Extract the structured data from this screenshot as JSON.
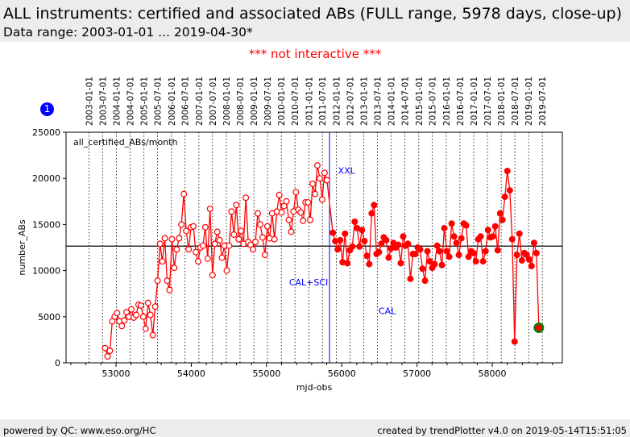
{
  "header": {
    "title": "ALL instruments: certified and associated ABs (FULL range, 5978 days, close-up)",
    "subtitle": "Data range: 2003-01-01 ... 2019-04-30*"
  },
  "notice": "*** not interactive ***",
  "badge": "1",
  "footer": {
    "left": "powered by QC: www.eso.org/HC",
    "right": "created by trendPlotter v4.0 on 2019-05-14T15:51:05"
  },
  "chart_data": {
    "type": "line",
    "title": "",
    "legend_label": "all_certified_ABs/month",
    "xlabel": "mjd-obs",
    "ylabel": "number_ABs",
    "xlim": [
      52336,
      58931
    ],
    "ylim": [
      0,
      25000
    ],
    "xticks": [
      53000,
      54000,
      55000,
      56000,
      57000,
      58000
    ],
    "yticks": [
      0,
      5000,
      10000,
      15000,
      20000,
      25000
    ],
    "date_lines": [
      "2003-01-01",
      "2003-07-01",
      "2004-01-01",
      "2004-07-01",
      "2005-01-01",
      "2005-07-01",
      "2006-01-01",
      "2006-07-01",
      "2007-01-01",
      "2007-07-01",
      "2008-01-01",
      "2008-07-01",
      "2009-01-01",
      "2009-07-01",
      "2010-01-01",
      "2010-07-01",
      "2011-01-01",
      "2011-07-01",
      "2012-01-01",
      "2012-07-01",
      "2013-01-01",
      "2013-07-01",
      "2014-01-01",
      "2014-07-01",
      "2015-01-01",
      "2015-07-01",
      "2016-01-01",
      "2016-07-01",
      "2017-01-01",
      "2017-07-01",
      "2018-01-01",
      "2018-07-01",
      "2019-01-01",
      "2019-07-01"
    ],
    "reference_line_y": 12650,
    "marker_line_x": 55837,
    "annotations": [
      {
        "text": "XXL",
        "x": 55950,
        "y": 20500
      },
      {
        "text": "CAL+SCI",
        "x": 55300,
        "y": 8400
      },
      {
        "text": "CAL",
        "x": 56490,
        "y": 5300
      }
    ],
    "colors": {
      "series": "#ff0000",
      "annotation": "#0000ff",
      "last_point": "#008000",
      "reference": "#000000"
    },
    "series": [
      {
        "marker": "hollow",
        "x": [
          52855,
          52887,
          52918,
          52950,
          52982,
          53014,
          53045,
          53077,
          53109,
          53140,
          53172,
          53204,
          53235,
          53267,
          53299,
          53331,
          53362,
          53394,
          53426,
          53457,
          53489,
          53521,
          53552,
          53584,
          53616,
          53648,
          53679,
          53711,
          53743,
          53774,
          53806,
          53838,
          53869,
          53901,
          53933,
          53965,
          53996,
          54028,
          54060,
          54091,
          54123,
          54155,
          54186,
          54218,
          54250,
          54282,
          54313,
          54345,
          54377,
          54408,
          54440,
          54472,
          54503,
          54535,
          54567,
          54599,
          54630,
          54662,
          54694,
          54725,
          54757,
          54789,
          54820,
          54852,
          54884,
          54916,
          54947,
          54979,
          55011,
          55042,
          55074,
          55106,
          55137,
          55169,
          55201,
          55233,
          55264,
          55296,
          55328,
          55359,
          55391,
          55423,
          55454,
          55486,
          55518,
          55550,
          55581,
          55613,
          55645,
          55676,
          55708,
          55740,
          55771,
          55803
        ],
        "y": [
          1600,
          700,
          1300,
          4500,
          5000,
          5400,
          4500,
          4000,
          4600,
          5500,
          5000,
          5800,
          4900,
          5200,
          6300,
          6200,
          5000,
          3700,
          6500,
          5200,
          3000,
          6100,
          8900,
          12900,
          11000,
          13500,
          8900,
          7900,
          13400,
          10300,
          12300,
          13500,
          15000,
          18300,
          14300,
          12300,
          14700,
          14800,
          12000,
          11000,
          12500,
          12700,
          14700,
          11300,
          16700,
          9500,
          12900,
          14200,
          13300,
          11400,
          12700,
          10000,
          12700,
          16400,
          13900,
          17100,
          13400,
          14300,
          12900,
          17900,
          13100,
          12800,
          12300,
          13100,
          16200,
          15000,
          13600,
          11700,
          14800,
          13500,
          16200,
          13400,
          16400,
          18200,
          16300,
          17000,
          17500,
          15500,
          14200,
          16400,
          18500,
          16600,
          16300,
          15400,
          17400,
          17400,
          15500,
          19400,
          18300,
          21400,
          20000,
          17700,
          20600,
          19800
        ]
      },
      {
        "marker": "filled",
        "x": [
          55882,
          55914,
          55946,
          55979,
          56011,
          56043,
          56075,
          56107,
          56140,
          56172,
          56204,
          56236,
          56268,
          56301,
          56333,
          56365,
          56397,
          56429,
          56462,
          56494,
          56526,
          56558,
          56590,
          56623,
          56655,
          56687,
          56719,
          56751,
          56784,
          56816,
          56848,
          56880,
          56912,
          56945,
          56977,
          57009,
          57041,
          57073,
          57106,
          57138,
          57170,
          57202,
          57234,
          57267,
          57299,
          57331,
          57363,
          57395,
          57428,
          57460,
          57492,
          57524,
          57556,
          57589,
          57621,
          57653,
          57685,
          57717,
          57750,
          57782,
          57814,
          57846,
          57878,
          57911,
          57943,
          57975,
          58007,
          58039,
          58072,
          58104,
          58136,
          58168,
          58200,
          58233,
          58265,
          58297,
          58329,
          58361,
          58394,
          58426,
          58458,
          58490,
          58522,
          58555,
          58587,
          58619
        ],
        "y": [
          14100,
          13200,
          12300,
          13300,
          10900,
          14000,
          10800,
          12200,
          12600,
          15300,
          14600,
          12600,
          14400,
          13200,
          11600,
          10700,
          16200,
          17100,
          11800,
          12000,
          12900,
          13600,
          13300,
          11400,
          12400,
          13000,
          12500,
          12800,
          10800,
          13700,
          12700,
          12900,
          9100,
          11800,
          11800,
          12500,
          12300,
          10200,
          8900,
          12100,
          11000,
          10300,
          10700,
          12700,
          12100,
          10600,
          14600,
          12100,
          11500,
          15100,
          13700,
          13000,
          11700,
          13500,
          15100,
          14900,
          11500,
          12100,
          11900,
          11000,
          13400,
          13700,
          11000,
          12100,
          14400,
          13600,
          13700,
          14800,
          12200,
          16200,
          15500,
          18000,
          20800,
          18700,
          13400,
          2300,
          11700,
          14000,
          11100,
          11900,
          11700,
          11200,
          10500,
          13000,
          11900,
          3800
        ]
      }
    ]
  }
}
